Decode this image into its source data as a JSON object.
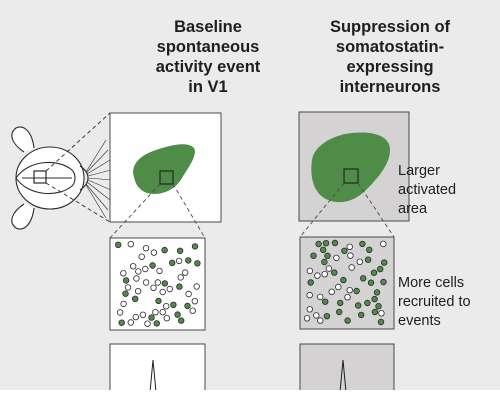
{
  "headings": {
    "baseline": "Baseline\nspontaneous\nactivity event\nin V1",
    "suppression": "Suppression of\nsomatostatin-\nexpressing\ninterneurons"
  },
  "labels": {
    "larger_area": "Larger\nactivated\narea",
    "more_cells": "More cells\nrecruited to\nevents"
  },
  "colors": {
    "activation_fill": "#4f8c48",
    "active_cell": "#4f8c48",
    "inactive_cell": "#ffffff",
    "baseline_panel": "#ffffff",
    "suppression_panel": "#d4d2d2",
    "background": "#ebebeb"
  },
  "cells": {
    "baseline": {
      "active": 21,
      "inactive": 34
    },
    "suppression": {
      "active": 34,
      "inactive": 21
    }
  }
}
